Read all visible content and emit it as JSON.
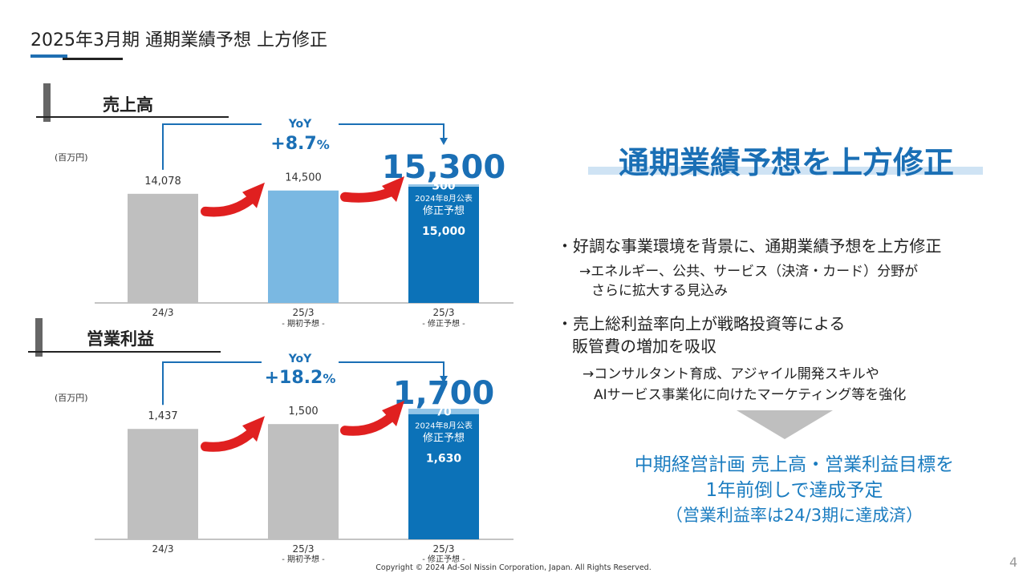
{
  "page": {
    "title": "2025年3月期  通期業績予想 上方修正",
    "copyright": "Copyright © 2024 Ad-Sol Nissin Corporation, Japan. All Rights Reserved.",
    "page_number": "4"
  },
  "colors": {
    "gray_bar": "#bfbfbf",
    "light_blue_bar": "#7ab8e2",
    "dark_blue_bar": "#0c72b8",
    "upper_segment": "#92c5e8",
    "accent_blue": "#1a6fb5",
    "red_arrow": "#e02020"
  },
  "chart_data": [
    {
      "type": "bar",
      "title": "売上高",
      "unit": "(百万円)",
      "categories": [
        "24/3",
        "25/3",
        "25/3"
      ],
      "category_sublabels": [
        "",
        "- 期初予想 -",
        "- 修正予想 -"
      ],
      "values": [
        14078,
        14500,
        15300
      ],
      "value_labels": [
        "14,078",
        "14,500",
        "15,300"
      ],
      "stacked_last": {
        "base": 15000,
        "base_label": "15,000",
        "increment": 300,
        "increment_label": "300",
        "annotation_line1": "2024年8月公表",
        "annotation_line2": "修正予想"
      },
      "yoy_label": "YoY",
      "yoy_value": "+8.7",
      "yoy_unit": "%"
    },
    {
      "type": "bar",
      "title": "営業利益",
      "unit": "(百万円)",
      "categories": [
        "24/3",
        "25/3",
        "25/3"
      ],
      "category_sublabels": [
        "",
        "- 期初予想 -",
        "- 修正予想 -"
      ],
      "values": [
        1437,
        1500,
        1700
      ],
      "value_labels": [
        "1,437",
        "1,500",
        "1,700"
      ],
      "stacked_last": {
        "base": 1630,
        "base_label": "1,630",
        "increment": 70,
        "increment_label": "70",
        "annotation_line1": "2024年8月公表",
        "annotation_line2": "修正予想"
      },
      "yoy_label": "YoY",
      "yoy_value": "+18.2",
      "yoy_unit": "%"
    }
  ],
  "right_panel": {
    "headline": "通期業績予想を上方修正",
    "bullet1": "・好調な事業環境を背景に、通期業績予想を上方修正",
    "bullet1_sub1": "→エネルギー、公共、サービス（決済・カード）分野が",
    "bullet1_sub2": "さらに拡大する見込み",
    "bullet2_line1": "・売上総利益率向上が戦略投資等による",
    "bullet2_line2": "販管費の増加を吸収",
    "bullet2_sub1": "→コンサルタント育成、アジャイル開発スキルや",
    "bullet2_sub2": "AIサービス事業化に向けたマーケティング等を強化",
    "conclusion1": "中期経営計画 売上高・営業利益目標を",
    "conclusion2": "1年前倒しで達成予定",
    "conclusion3": "（営業利益率は24/3期に達成済）"
  }
}
